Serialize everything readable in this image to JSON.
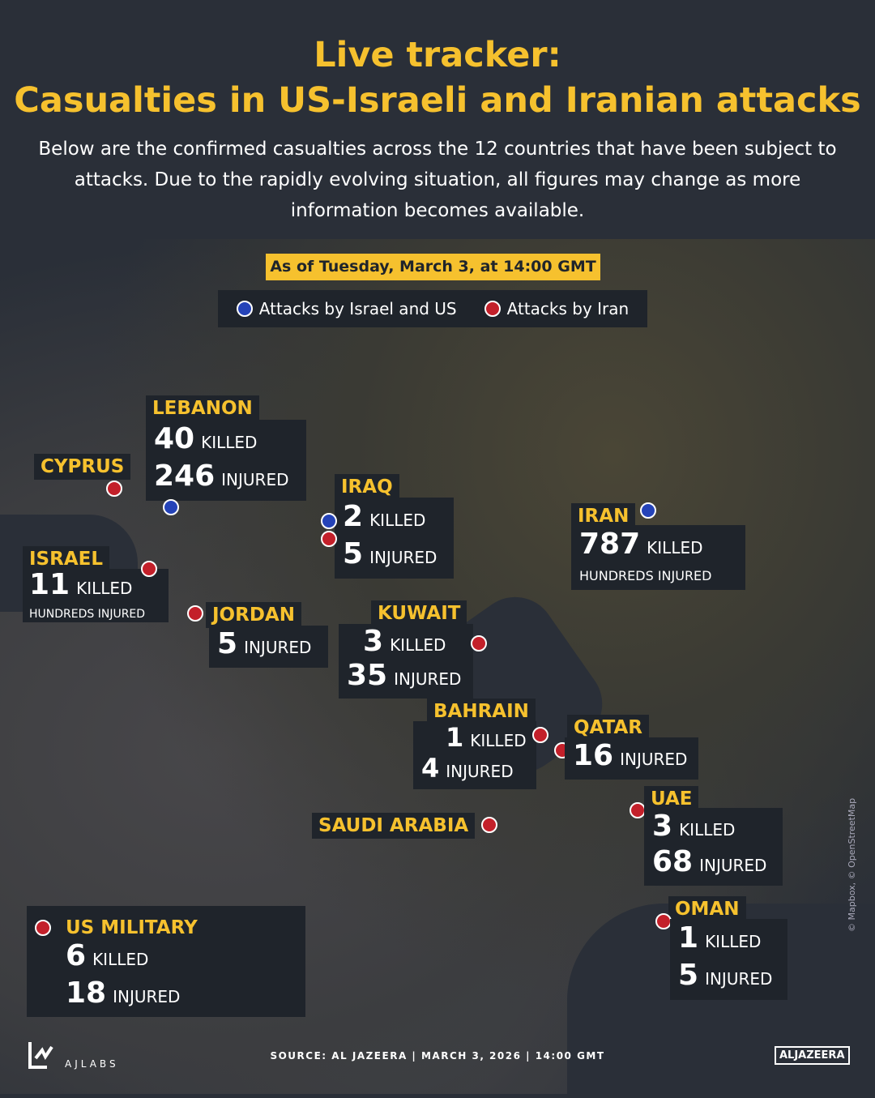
{
  "title_line1": "Live tracker:",
  "title_line2": "Casualties in US-Israeli and Iranian attacks",
  "intro": "Below are the confirmed casualties across the 12 countries that have been subject to attacks. Due to the rapidly evolving situation, all figures may change as more information becomes available.",
  "date": "As of Tuesday, March 3, at 14:00 GMT",
  "legend": {
    "blue": "Attacks by Israel and US",
    "red": "Attacks by Iran",
    "colors": {
      "blue": "#2543b8",
      "red": "#c3202a",
      "accent": "#f6c12e"
    }
  },
  "countries": {
    "lebanon": {
      "name": "LEBANON",
      "killed": "40",
      "injured": "246",
      "attacker": "blue"
    },
    "cyprus": {
      "name": "CYPRUS",
      "attacker": "red"
    },
    "iraq": {
      "name": "IRAQ",
      "killed": "2",
      "injured": "5",
      "attacker": "both"
    },
    "iran": {
      "name": "IRAN",
      "killed": "787",
      "injured_text": "HUNDREDS INJURED",
      "attacker": "blue"
    },
    "israel": {
      "name": "ISRAEL",
      "killed": "11",
      "injured_text": "HUNDREDS INJURED",
      "attacker": "red"
    },
    "jordan": {
      "name": "JORDAN",
      "injured": "5",
      "attacker": "red"
    },
    "kuwait": {
      "name": "KUWAIT",
      "killed": "3",
      "injured": "35",
      "attacker": "red"
    },
    "bahrain": {
      "name": "BAHRAIN",
      "killed": "1",
      "injured": "4",
      "attacker": "red"
    },
    "qatar": {
      "name": "QATAR",
      "injured": "16",
      "attacker": "red"
    },
    "uae": {
      "name": "UAE",
      "killed": "3",
      "injured": "68",
      "attacker": "red"
    },
    "saudi": {
      "name": "SAUDI ARABIA",
      "attacker": "red"
    },
    "oman": {
      "name": "OMAN",
      "killed": "1",
      "injured": "5",
      "attacker": "red"
    },
    "us": {
      "name": "US MILITARY",
      "killed": "6",
      "injured": "18",
      "attacker": "red"
    }
  },
  "units": {
    "killed": "KILLED",
    "injured": "INJURED"
  },
  "footer": "SOURCE:  AL JAZEERA  |  MARCH 3, 2026  |  14:00 GMT",
  "ajlabs": "AJLABS",
  "aljazeera": "ALJAZEERA",
  "credit": "© Mapbox, © OpenStreetMap"
}
